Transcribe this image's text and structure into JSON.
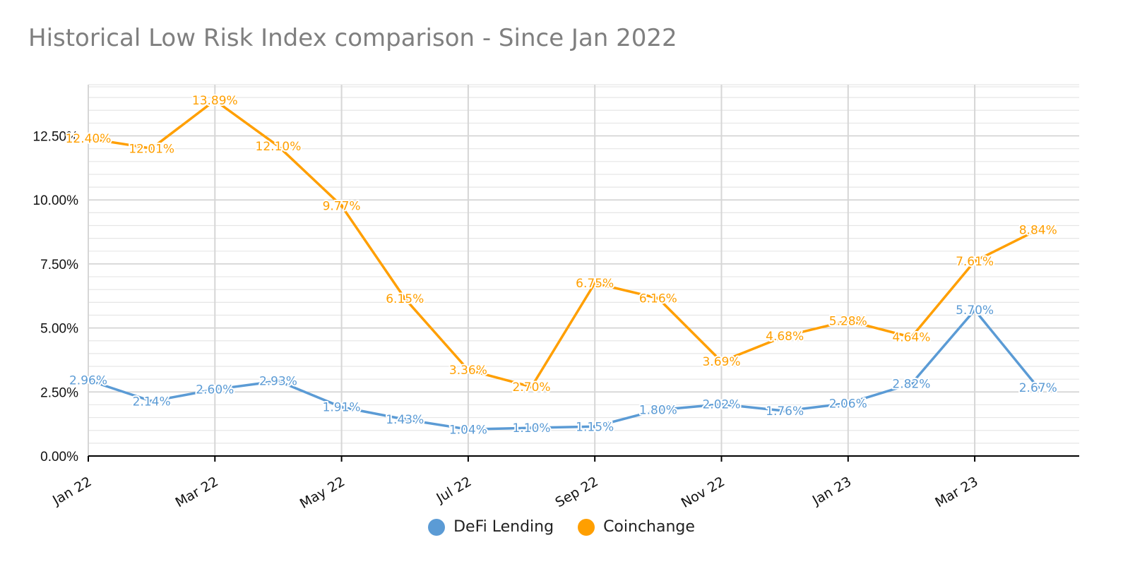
{
  "chart_data": {
    "type": "line",
    "title": "Historical Low Risk Index comparison - Since Jan 2022",
    "xlabel": "",
    "ylabel": "",
    "x": [
      "2022-01",
      "2022-02",
      "2022-03",
      "2022-04",
      "2022-05",
      "2022-06",
      "2022-07",
      "2022-08",
      "2022-09",
      "2022-10",
      "2022-11",
      "2022-12",
      "2023-01",
      "2023-02",
      "2023-03",
      "2023-04"
    ],
    "x_tick_labels": [
      "Jan 22",
      "Mar 22",
      "May 22",
      "Jul 22",
      "Sep 22",
      "Nov 22",
      "Jan 23",
      "Mar 23"
    ],
    "y_tick_labels": [
      "0.00%",
      "2.50%",
      "5.00%",
      "7.50%",
      "10.00%",
      "12.50%"
    ],
    "ylim": [
      0,
      14.5
    ],
    "grid": true,
    "legend_position": "bottom-center",
    "series": [
      {
        "name": "DeFi Lending",
        "color": "#5b9bd5",
        "values": [
          2.96,
          2.14,
          2.6,
          2.93,
          1.91,
          1.43,
          1.04,
          1.1,
          1.15,
          1.8,
          2.02,
          1.76,
          2.06,
          2.82,
          5.7,
          2.67
        ],
        "data_labels": [
          "2.96%",
          "2.14%",
          "2.60%",
          "2.93%",
          "1.91%",
          "1.43%",
          "1.04%",
          "1.10%",
          "1.15%",
          "1.80%",
          "2.02%",
          "1.76%",
          "2.06%",
          "2.82%",
          "5.70%",
          "2.67%"
        ]
      },
      {
        "name": "Coinchange",
        "color": "#ff9f00",
        "values": [
          12.4,
          12.01,
          13.89,
          12.1,
          9.77,
          6.15,
          3.36,
          2.7,
          6.75,
          6.16,
          3.69,
          4.68,
          5.28,
          4.64,
          7.61,
          8.84
        ],
        "data_labels": [
          "12.40%",
          "12.01%",
          "13.89%",
          "12.10%",
          "9.77%",
          "6.15%",
          "3.36%",
          "2.70%",
          "6.75%",
          "6.16%",
          "3.69%",
          "4.68%",
          "5.28%",
          "4.64%",
          "7.61%",
          "8.84%"
        ]
      }
    ]
  }
}
